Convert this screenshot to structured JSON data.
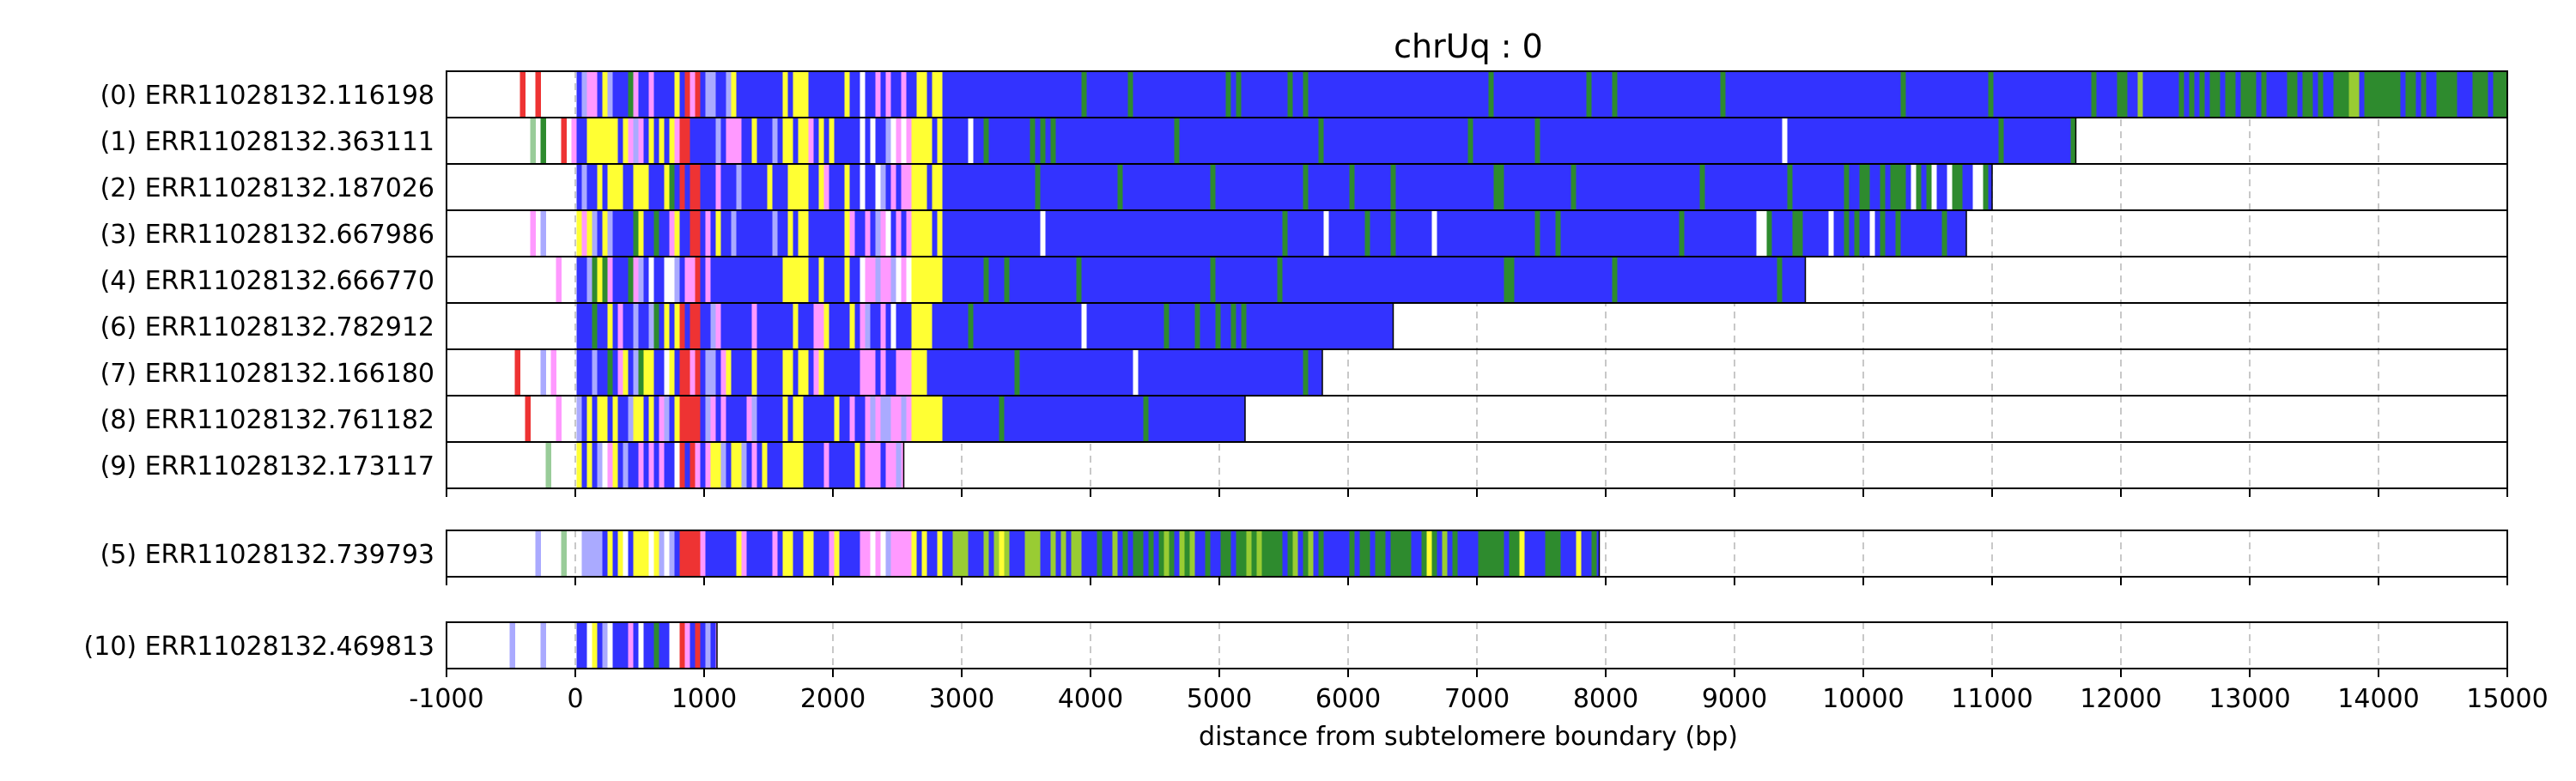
{
  "chart_data": {
    "type": "read-composition",
    "title": "chrUq : 0",
    "xlabel": "distance from subtelomere boundary (bp)",
    "xlim": [
      -1000,
      15000
    ],
    "xticks": [
      -1000,
      0,
      1000,
      2000,
      3000,
      4000,
      5000,
      6000,
      7000,
      8000,
      9000,
      10000,
      11000,
      12000,
      13000,
      14000,
      15000
    ],
    "grid": "vertical dashed",
    "colors": {
      "blue": "#3333ff",
      "green": "#2e8b2e",
      "yellow": "#ffff33",
      "red": "#ee3333",
      "pink": "#ff99ff",
      "light_blue": "#aaaaff",
      "light_green": "#99cc99",
      "white": "#ffffff",
      "cyan": "#33cccc",
      "olive": "#99cc33"
    },
    "groups": [
      {
        "reads": [
          {
            "label": "(0) ERR11028132.116198",
            "start": -1000,
            "end": 15000,
            "profile": "blue-green"
          },
          {
            "label": "(1) ERR11028132.363111",
            "start": -1000,
            "end": 11650,
            "profile": "blue"
          },
          {
            "label": "(2) ERR11028132.187026",
            "start": -1000,
            "end": 11000,
            "profile": "blue-greenmix"
          },
          {
            "label": "(3) ERR11028132.667986",
            "start": -1000,
            "end": 10800,
            "profile": "blue"
          },
          {
            "label": "(4) ERR11028132.666770",
            "start": -1000,
            "end": 9550,
            "profile": "blue"
          },
          {
            "label": "(6) ERR11028132.782912",
            "start": -1000,
            "end": 6350,
            "profile": "blue"
          },
          {
            "label": "(7) ERR11028132.166180",
            "start": -1000,
            "end": 5800,
            "profile": "blue"
          },
          {
            "label": "(8) ERR11028132.761182",
            "start": -1000,
            "end": 5200,
            "profile": "blue-greenmix"
          },
          {
            "label": "(9) ERR11028132.173117",
            "start": -1000,
            "end": 2550,
            "profile": "short"
          }
        ]
      },
      {
        "reads": [
          {
            "label": "(5) ERR11028132.739793",
            "start": -1000,
            "end": 7950,
            "profile": "green-mix"
          }
        ]
      },
      {
        "reads": [
          {
            "label": "(10) ERR11028132.469813",
            "start": -1000,
            "end": 1100,
            "profile": "short"
          }
        ]
      }
    ]
  }
}
